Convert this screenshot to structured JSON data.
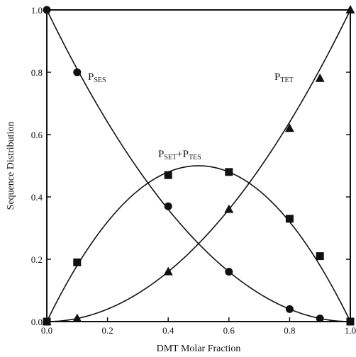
{
  "chart_data": {
    "type": "scatter",
    "xlabel": "DMT Molar Fraction",
    "ylabel": "Sequence Distribution",
    "xlim": [
      0.0,
      1.0
    ],
    "ylim": [
      0.0,
      1.0
    ],
    "xticks": [
      "0.0",
      "0.2",
      "0.4",
      "0.6",
      "0.8",
      "1.0"
    ],
    "yticks": [
      "0.0",
      "0.2",
      "0.4",
      "0.6",
      "0.8",
      "1.0"
    ],
    "grid": false,
    "series": [
      {
        "name_main": "P",
        "name_sub": "SES",
        "marker": "circle",
        "points": [
          [
            0.0,
            1.0
          ],
          [
            0.1,
            0.8
          ],
          [
            0.4,
            0.37
          ],
          [
            0.6,
            0.16
          ],
          [
            0.8,
            0.04
          ],
          [
            0.9,
            0.01
          ],
          [
            1.0,
            0.0
          ]
        ],
        "curve": "(1-x)^2"
      },
      {
        "name_main": "P",
        "name_sub": "TET",
        "marker": "triangle",
        "points": [
          [
            0.0,
            0.0
          ],
          [
            0.1,
            0.01
          ],
          [
            0.4,
            0.16
          ],
          [
            0.6,
            0.36
          ],
          [
            0.8,
            0.62
          ],
          [
            0.9,
            0.78
          ],
          [
            1.0,
            1.0
          ]
        ],
        "curve": "x^2"
      },
      {
        "name_main": "P",
        "name_sub": "SET",
        "name_main2": "P",
        "name_sub2": "TES",
        "name_join": "+",
        "marker": "square",
        "points": [
          [
            0.0,
            0.0
          ],
          [
            0.1,
            0.19
          ],
          [
            0.4,
            0.47
          ],
          [
            0.6,
            0.48
          ],
          [
            0.8,
            0.33
          ],
          [
            0.9,
            0.21
          ],
          [
            1.0,
            0.0
          ]
        ],
        "curve": "2x(1-x)"
      }
    ]
  }
}
